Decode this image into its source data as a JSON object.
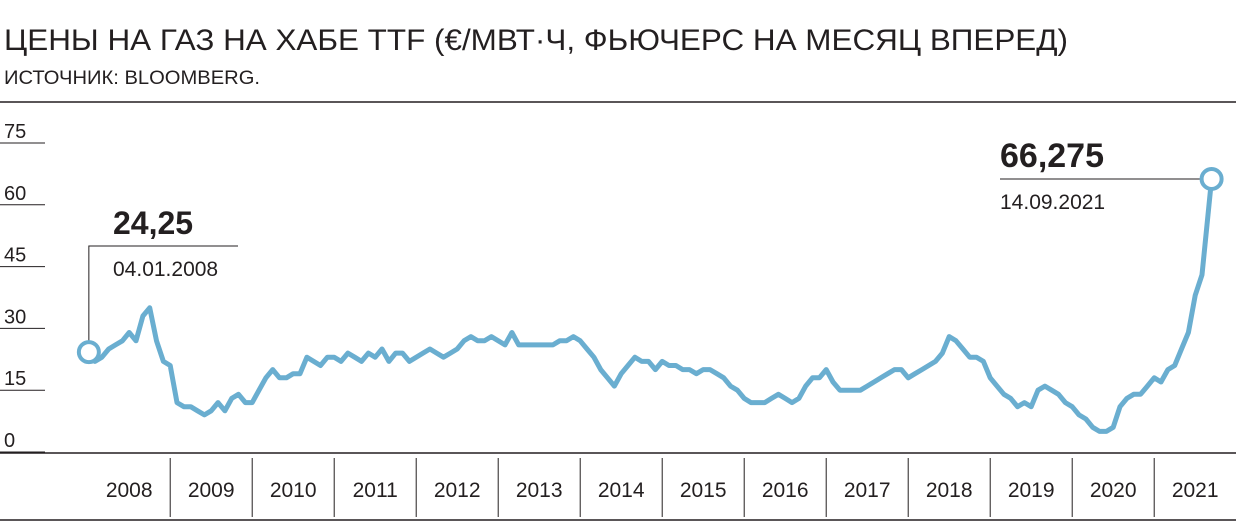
{
  "chart_data": {
    "type": "line",
    "title": "ЦЕНЫ НА ГАЗ НА ХАБЕ TTF (€/МВТ·Ч, ФЬЮЧЕРС НА МЕСЯЦ ВПЕРЕД)",
    "subtitle": "ИСТОЧНИК: BLOOMBERG.",
    "x": [
      2008.008,
      2008.083,
      2008.167,
      2008.25,
      2008.333,
      2008.417,
      2008.5,
      2008.583,
      2008.667,
      2008.75,
      2008.833,
      2008.917,
      2009,
      2009.083,
      2009.167,
      2009.25,
      2009.333,
      2009.417,
      2009.5,
      2009.583,
      2009.667,
      2009.75,
      2009.833,
      2009.917,
      2010,
      2010.083,
      2010.167,
      2010.25,
      2010.333,
      2010.417,
      2010.5,
      2010.583,
      2010.667,
      2010.75,
      2010.833,
      2010.917,
      2011,
      2011.083,
      2011.167,
      2011.25,
      2011.333,
      2011.417,
      2011.5,
      2011.583,
      2011.667,
      2011.75,
      2011.833,
      2011.917,
      2012,
      2012.083,
      2012.167,
      2012.25,
      2012.333,
      2012.417,
      2012.5,
      2012.583,
      2012.667,
      2012.75,
      2012.833,
      2012.917,
      2013,
      2013.083,
      2013.167,
      2013.25,
      2013.333,
      2013.417,
      2013.5,
      2013.583,
      2013.667,
      2013.75,
      2013.833,
      2013.917,
      2014,
      2014.083,
      2014.167,
      2014.25,
      2014.333,
      2014.417,
      2014.5,
      2014.583,
      2014.667,
      2014.75,
      2014.833,
      2014.917,
      2015,
      2015.083,
      2015.167,
      2015.25,
      2015.333,
      2015.417,
      2015.5,
      2015.583,
      2015.667,
      2015.75,
      2015.833,
      2015.917,
      2016,
      2016.083,
      2016.167,
      2016.25,
      2016.333,
      2016.417,
      2016.5,
      2016.583,
      2016.667,
      2016.75,
      2016.833,
      2016.917,
      2017,
      2017.083,
      2017.167,
      2017.25,
      2017.333,
      2017.417,
      2017.5,
      2017.583,
      2017.667,
      2017.75,
      2017.833,
      2017.917,
      2018,
      2018.083,
      2018.167,
      2018.25,
      2018.333,
      2018.417,
      2018.5,
      2018.583,
      2018.667,
      2018.75,
      2018.833,
      2018.917,
      2019,
      2019.083,
      2019.167,
      2019.25,
      2019.333,
      2019.417,
      2019.5,
      2019.583,
      2019.667,
      2019.75,
      2019.833,
      2019.917,
      2020,
      2020.083,
      2020.167,
      2020.25,
      2020.333,
      2020.417,
      2020.5,
      2020.583,
      2020.667,
      2020.75,
      2020.833,
      2020.917,
      2021,
      2021.083,
      2021.167,
      2021.25,
      2021.333,
      2021.417,
      2021.5,
      2021.583,
      2021.7
    ],
    "series": [
      {
        "color": "#6aaed0",
        "values": [
          24.25,
          22,
          23,
          25,
          26,
          27,
          29,
          27,
          33,
          35,
          27,
          22,
          21,
          12,
          11,
          11,
          10,
          9,
          10,
          12,
          10,
          13,
          14,
          12,
          12,
          15,
          18,
          20,
          18,
          18,
          19,
          19,
          23,
          22,
          21,
          23,
          23,
          22,
          24,
          23,
          22,
          24,
          23,
          25,
          22,
          24,
          24,
          22,
          23,
          24,
          25,
          24,
          23,
          24,
          25,
          27,
          28,
          27,
          27,
          28,
          27,
          26,
          29,
          26,
          26,
          26,
          26,
          26,
          26,
          27,
          27,
          28,
          27,
          25,
          23,
          20,
          18,
          16,
          19,
          21,
          23,
          22,
          22,
          20,
          22,
          21,
          21,
          20,
          20,
          19,
          20,
          20,
          19,
          18,
          16,
          15,
          13,
          12,
          12,
          12,
          13,
          14,
          13,
          12,
          13,
          16,
          18,
          18,
          20,
          17,
          15,
          15,
          15,
          15,
          16,
          17,
          18,
          19,
          20,
          20,
          18,
          19,
          20,
          21,
          22,
          24,
          28,
          27,
          25,
          23,
          23,
          22,
          18,
          16,
          14,
          13,
          11,
          12,
          11,
          15,
          16,
          15,
          14,
          12,
          11,
          9,
          8,
          6,
          5,
          5,
          6,
          11,
          13,
          14,
          14,
          16,
          18,
          17,
          20,
          21,
          25,
          29,
          38,
          43,
          66.275
        ]
      }
    ],
    "annotations": [
      {
        "x": 2008.008,
        "value": 24.25,
        "label": "24,25",
        "date": "04.01.2008"
      },
      {
        "x": 2021.7,
        "value": 66.275,
        "label": "66,275",
        "date": "14.09.2021"
      }
    ],
    "xlim": [
      2007.9,
      2021.9
    ],
    "xticks": [
      {
        "value": 2008.5,
        "label": "2008"
      },
      {
        "value": 2009.5,
        "label": "2009"
      },
      {
        "value": 2010.5,
        "label": "2010"
      },
      {
        "value": 2011.5,
        "label": "2011"
      },
      {
        "value": 2012.5,
        "label": "2012"
      },
      {
        "value": 2013.5,
        "label": "2013"
      },
      {
        "value": 2014.5,
        "label": "2014"
      },
      {
        "value": 2015.5,
        "label": "2015"
      },
      {
        "value": 2016.5,
        "label": "2016"
      },
      {
        "value": 2017.5,
        "label": "2017"
      },
      {
        "value": 2018.5,
        "label": "2018"
      },
      {
        "value": 2019.5,
        "label": "2019"
      },
      {
        "value": 2020.5,
        "label": "2020"
      },
      {
        "value": 2021.5,
        "label": "2021"
      }
    ],
    "ylim": [
      0,
      75
    ],
    "yticks": [
      0,
      15,
      30,
      45,
      60,
      75
    ]
  }
}
